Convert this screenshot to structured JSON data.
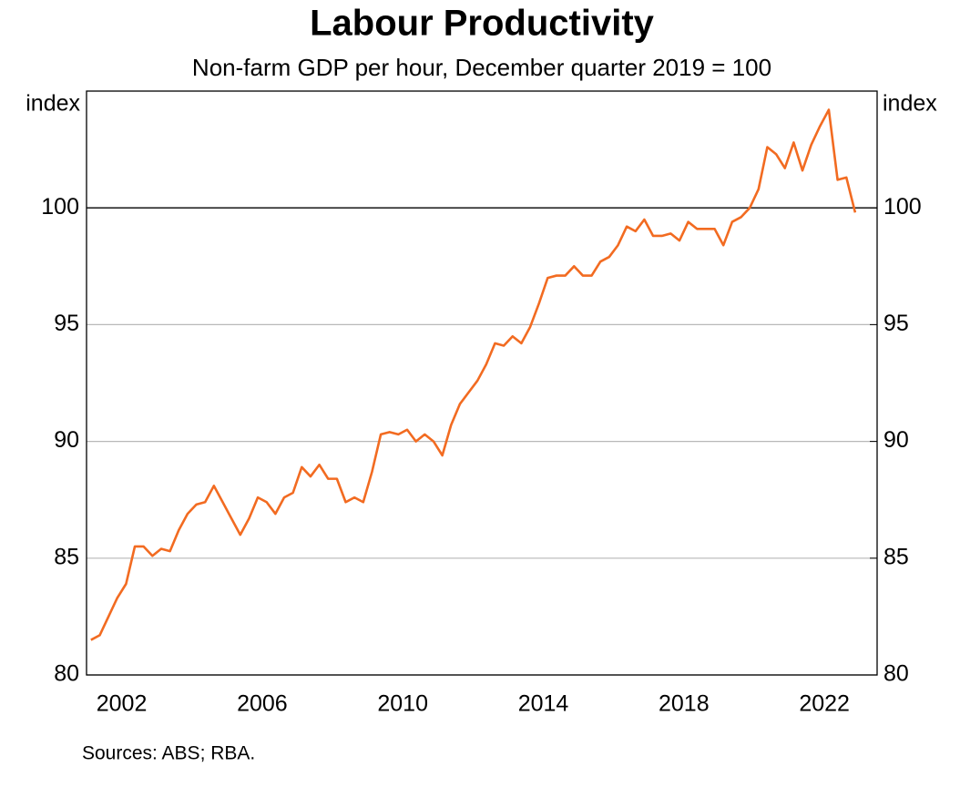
{
  "chart_data": {
    "type": "line",
    "title": "Labour Productivity",
    "subtitle": "Non-farm GDP per hour, December quarter 2019 = 100",
    "y_label": "index",
    "y2_label": "index",
    "source": "Sources: ABS; RBA.",
    "x": [
      2001.125,
      2001.375,
      2001.625,
      2001.875,
      2002.125,
      2002.375,
      2002.625,
      2002.875,
      2003.125,
      2003.375,
      2003.625,
      2003.875,
      2004.125,
      2004.375,
      2004.625,
      2004.875,
      2005.125,
      2005.375,
      2005.625,
      2005.875,
      2006.125,
      2006.375,
      2006.625,
      2006.875,
      2007.125,
      2007.375,
      2007.625,
      2007.875,
      2008.125,
      2008.375,
      2008.625,
      2008.875,
      2009.125,
      2009.375,
      2009.625,
      2009.875,
      2010.125,
      2010.375,
      2010.625,
      2010.875,
      2011.125,
      2011.375,
      2011.625,
      2011.875,
      2012.125,
      2012.375,
      2012.625,
      2012.875,
      2013.125,
      2013.375,
      2013.625,
      2013.875,
      2014.125,
      2014.375,
      2014.625,
      2014.875,
      2015.125,
      2015.375,
      2015.625,
      2015.875,
      2016.125,
      2016.375,
      2016.625,
      2016.875,
      2017.125,
      2017.375,
      2017.625,
      2017.875,
      2018.125,
      2018.375,
      2018.625,
      2018.875,
      2019.125,
      2019.375,
      2019.625,
      2019.875,
      2020.125,
      2020.375,
      2020.625,
      2020.875,
      2021.125,
      2021.375,
      2021.625,
      2021.875,
      2022.125,
      2022.375,
      2022.625,
      2022.875
    ],
    "series": [
      {
        "name": "Labour productivity",
        "color": "#f26b21",
        "values": [
          81.5,
          81.7,
          82.5,
          83.3,
          83.9,
          85.5,
          85.5,
          85.1,
          85.4,
          85.3,
          86.2,
          86.9,
          87.3,
          87.4,
          88.1,
          87.4,
          86.7,
          86.0,
          86.7,
          87.6,
          87.4,
          86.9,
          87.6,
          87.8,
          88.9,
          88.5,
          89.0,
          88.4,
          88.4,
          87.4,
          87.6,
          87.4,
          88.7,
          90.3,
          90.4,
          90.3,
          90.5,
          90.0,
          90.3,
          90.0,
          89.4,
          90.7,
          91.6,
          92.1,
          92.6,
          93.3,
          94.2,
          94.1,
          94.5,
          94.2,
          94.9,
          95.9,
          97.0,
          97.1,
          97.1,
          97.5,
          97.1,
          97.1,
          97.7,
          97.9,
          98.4,
          99.2,
          99.0,
          99.5,
          98.8,
          98.8,
          98.9,
          98.6,
          99.4,
          99.1,
          99.1,
          99.1,
          98.4,
          99.4,
          99.6,
          100.0,
          100.8,
          102.6,
          102.3,
          101.7,
          102.8,
          101.6,
          102.7,
          103.5,
          104.2,
          101.2,
          101.3,
          99.8
        ]
      }
    ],
    "xlim": [
      2001,
      2023.5
    ],
    "xticks": [
      2002,
      2006,
      2010,
      2014,
      2018,
      2022
    ],
    "ylim": [
      80,
      105
    ],
    "yticks": [
      80,
      85,
      90,
      95,
      100
    ],
    "y2lim": [
      80,
      105
    ],
    "y2ticks": [
      80,
      85,
      90,
      95,
      100
    ],
    "reference_line": 100,
    "grid": true
  }
}
